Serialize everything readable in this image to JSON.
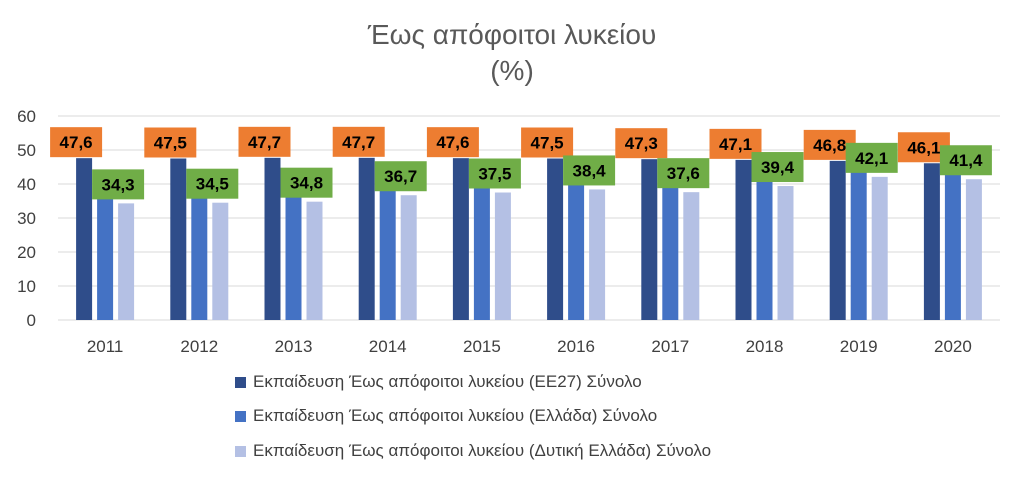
{
  "chart_data": {
    "type": "bar",
    "title": "Έως απόφοιτοι λυκείου",
    "subtitle": "(%)",
    "categories": [
      "2011",
      "2012",
      "2013",
      "2014",
      "2015",
      "2016",
      "2017",
      "2018",
      "2019",
      "2020"
    ],
    "series": [
      {
        "name": "Εκπαίδευση Έως απόφοιτοι λυκείου (ΕΕ27) Σύνολο",
        "color": "#2F4D8A",
        "values": [
          47.6,
          47.5,
          47.7,
          47.7,
          47.6,
          47.5,
          47.3,
          47.1,
          46.8,
          46.1
        ],
        "labels": [
          "47,6",
          "47,5",
          "47,7",
          "47,7",
          "47,6",
          "47,5",
          "47,3",
          "47,1",
          "46,8",
          "46,1"
        ],
        "label_color": "#ED7D31"
      },
      {
        "name": "Εκπαίδευση Έως απόφοιτοι λυκείου (Ελλάδα) Σύνολο",
        "color": "#4472C4",
        "values": [
          39.2,
          39.8,
          40.1,
          40.5,
          41.3,
          41.5,
          41.6,
          41.8,
          44.6,
          45.3
        ]
      },
      {
        "name": "Εκπαίδευση Έως απόφοιτοι λυκείου (Δυτική Ελλάδα) Σύνολο",
        "color": "#B4C0E4",
        "values": [
          34.3,
          34.5,
          34.8,
          36.7,
          37.5,
          38.4,
          37.6,
          39.4,
          42.1,
          41.4
        ],
        "labels": [
          "34,3",
          "34,5",
          "34,8",
          "36,7",
          "37,5",
          "38,4",
          "37,6",
          "39,4",
          "42,1",
          "41,4"
        ],
        "label_color": "#70AD47"
      }
    ],
    "ylim": [
      0,
      60
    ],
    "yticks": [
      0,
      10,
      20,
      30,
      40,
      50,
      60
    ],
    "grid": true,
    "legend_position": "bottom"
  }
}
